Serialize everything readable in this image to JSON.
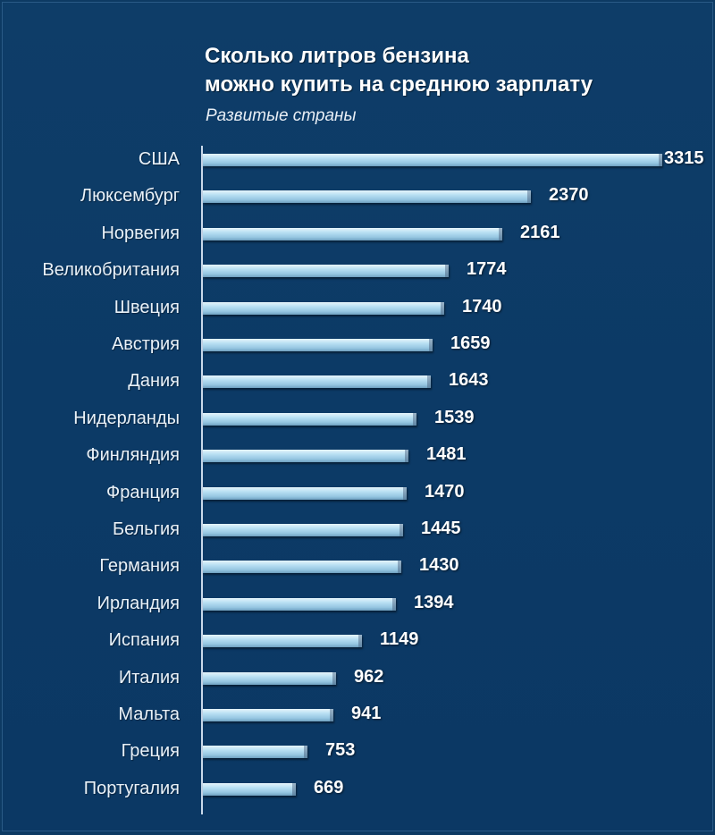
{
  "chart_data": {
    "type": "bar",
    "orientation": "horizontal",
    "title": "Сколько литров бензина можно купить на среднюю зарплату",
    "title_lines": [
      "Сколько литров бензина",
      "можно купить на среднюю зарплату"
    ],
    "subtitle": "Развитые страны",
    "xlabel": "",
    "ylabel": "",
    "grid": false,
    "legend": null,
    "xlim": [
      0,
      3315
    ],
    "categories": [
      "США",
      "Люксембург",
      "Норвегия",
      "Великобритания",
      "Швеция",
      "Австрия",
      "Дания",
      "Нидерланды",
      "Финляндия",
      "Франция",
      "Бельгия",
      "Германия",
      "Ирландия",
      "Испания",
      "Италия",
      "Мальта",
      "Греция",
      "Португалия"
    ],
    "values": [
      3315,
      2370,
      2161,
      1774,
      1740,
      1659,
      1643,
      1539,
      1481,
      1470,
      1445,
      1430,
      1394,
      1149,
      962,
      941,
      753,
      669
    ],
    "value_labels": [
      "3315",
      "2370",
      "2161",
      "1774",
      "1740",
      "1659",
      "1643",
      "1539",
      "1481",
      "1470",
      "1445",
      "1430",
      "1394",
      "1149",
      "962",
      "941",
      "753",
      "669"
    ]
  },
  "colors": {
    "background": "#0d3a63",
    "bar": "#b9e0f3",
    "text": "#ffffff"
  }
}
